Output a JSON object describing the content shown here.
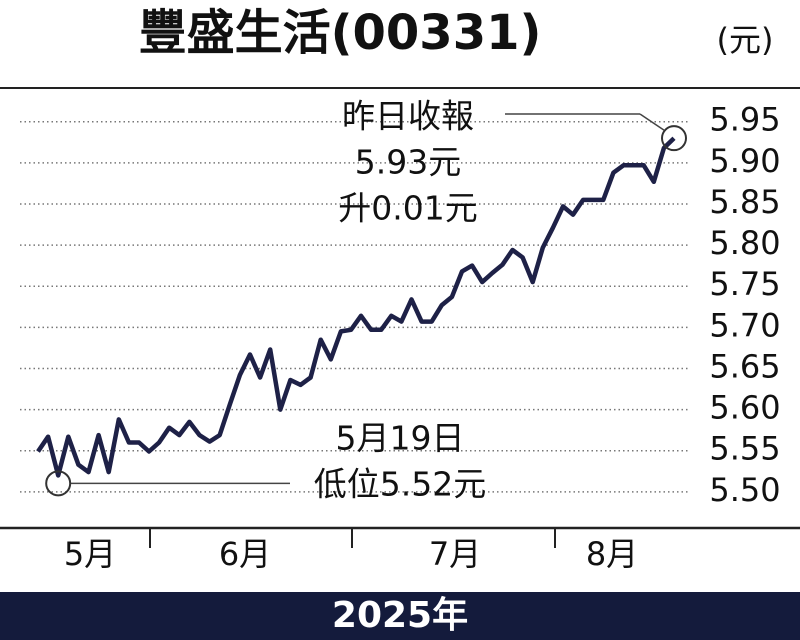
{
  "chart_data": {
    "type": "line",
    "title": "豐盛生活(00331)",
    "unit": "(元)",
    "x_labels": [
      "5月",
      "6月",
      "7月",
      "8月"
    ],
    "footer": "2025年",
    "color": "#1e2147",
    "values": [
      5.549,
      5.567,
      5.52,
      5.567,
      5.533,
      5.524,
      5.569,
      5.524,
      5.588,
      5.56,
      5.56,
      5.549,
      5.56,
      5.578,
      5.569,
      5.585,
      5.569,
      5.561,
      5.569,
      5.606,
      5.642,
      5.667,
      5.639,
      5.673,
      5.6,
      5.636,
      5.63,
      5.639,
      5.685,
      5.661,
      5.695,
      5.697,
      5.714,
      5.697,
      5.697,
      5.714,
      5.707,
      5.734,
      5.707,
      5.707,
      5.727,
      5.737,
      5.768,
      5.775,
      5.755,
      5.766,
      5.776,
      5.794,
      5.785,
      5.755,
      5.797,
      5.821,
      5.847,
      5.837,
      5.855,
      5.855,
      5.855,
      5.888,
      5.897,
      5.897,
      5.897,
      5.877,
      5.918,
      5.93
    ],
    "ylim": [
      5.456,
      5.991
    ],
    "yticks": [
      {
        "value": 5.5,
        "label": "5.50"
      },
      {
        "value": 5.55,
        "label": "5.55"
      },
      {
        "value": 5.6,
        "label": "5.60"
      },
      {
        "value": 5.65,
        "label": "5.65"
      },
      {
        "value": 5.7,
        "label": "5.70"
      },
      {
        "value": 5.75,
        "label": "5.75"
      },
      {
        "value": 5.8,
        "label": "5.80"
      },
      {
        "value": 5.85,
        "label": "5.85"
      },
      {
        "value": 5.9,
        "label": "5.90"
      },
      {
        "value": 5.95,
        "label": "5.95"
      }
    ],
    "grid": true,
    "annotations": {
      "high": {
        "lines": [
          "昨日收報",
          "5.93元",
          "升0.01元"
        ]
      },
      "low": {
        "lines": [
          "5月19日",
          "低位5.52元"
        ]
      }
    }
  }
}
